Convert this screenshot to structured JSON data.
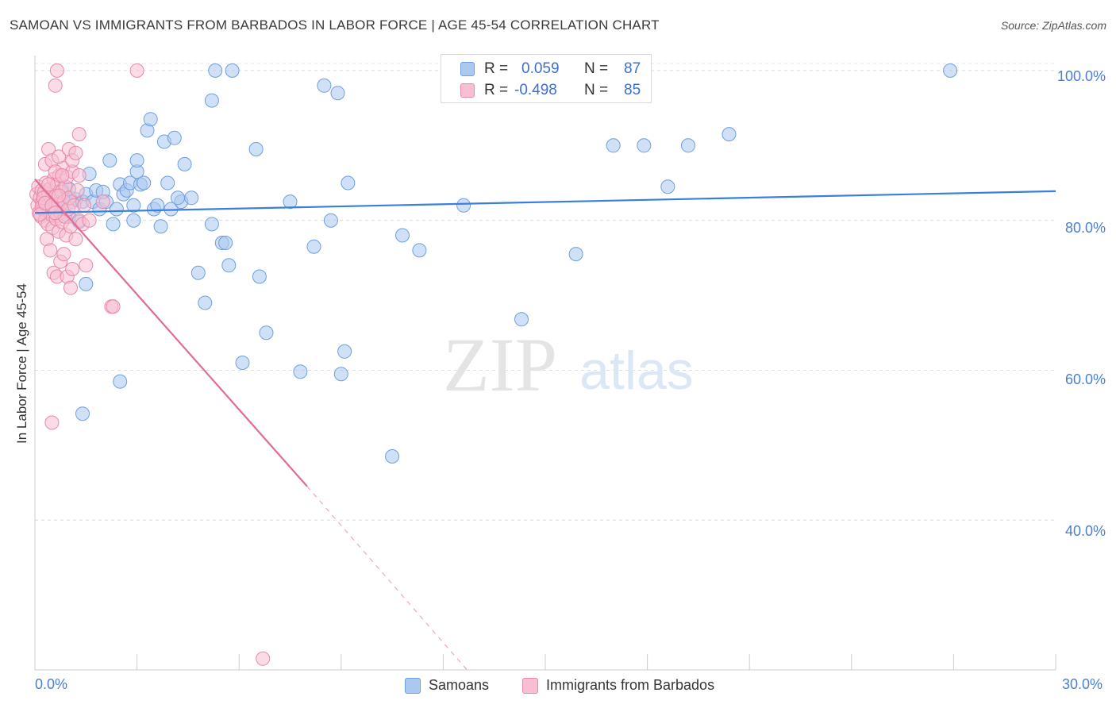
{
  "header": {
    "title": "SAMOAN VS IMMIGRANTS FROM BARBADOS IN LABOR FORCE | AGE 45-54 CORRELATION CHART",
    "source": "Source: ZipAtlas.com"
  },
  "watermark": {
    "zip": "ZIP",
    "atlas": "atlas"
  },
  "legend": {
    "rows": [
      {
        "r_label": "R =",
        "r_value": "0.059",
        "n_label": "N =",
        "n_value": "87",
        "color": "#aac8f0",
        "border": "#6f9fde"
      },
      {
        "r_label": "R =",
        "r_value": "-0.498",
        "n_label": "N =",
        "n_value": "85",
        "color": "#f8bfd2",
        "border": "#e889a8"
      }
    ]
  },
  "chart_data": {
    "type": "scatter",
    "title": "SAMOAN VS IMMIGRANTS FROM BARBADOS IN LABOR FORCE | AGE 45-54 CORRELATION CHART",
    "xlabel": "",
    "ylabel": "In Labor Force | Age 45-54",
    "xlim": [
      0,
      30
    ],
    "ylim": [
      20,
      102
    ],
    "x_tick_labels": [
      "0.0%",
      "30.0%"
    ],
    "y_ticks": [
      40,
      60,
      80,
      100
    ],
    "y_tick_labels": [
      "40.0%",
      "60.0%",
      "80.0%",
      "100.0%"
    ],
    "grid": true,
    "legend_position": "top-center",
    "series": [
      {
        "name": "Samoans",
        "color": "#aac8f0",
        "stroke": "#6f9fde",
        "trend": {
          "x": [
            0,
            30
          ],
          "y": [
            81.0,
            83.9
          ],
          "color": "#3a7fd8"
        },
        "points": [
          [
            0.2,
            81.5
          ],
          [
            0.3,
            80.8
          ],
          [
            0.4,
            82.0
          ],
          [
            0.5,
            81.0
          ],
          [
            0.6,
            80.5
          ],
          [
            0.7,
            83.0
          ],
          [
            0.8,
            84.0
          ],
          [
            0.9,
            82.8
          ],
          [
            1.0,
            80.5
          ],
          [
            1.1,
            82.5
          ],
          [
            1.2,
            82.8
          ],
          [
            1.3,
            79.8
          ],
          [
            1.4,
            82.5
          ],
          [
            1.5,
            83.5
          ],
          [
            1.7,
            82.5
          ],
          [
            1.8,
            84.0
          ],
          [
            1.9,
            81.5
          ],
          [
            2.1,
            82.5
          ],
          [
            2.3,
            79.5
          ],
          [
            2.2,
            88.0
          ],
          [
            2.4,
            81.5
          ],
          [
            2.5,
            84.8
          ],
          [
            2.6,
            83.5
          ],
          [
            2.7,
            84.0
          ],
          [
            2.8,
            85.0
          ],
          [
            2.9,
            80.0
          ],
          [
            3.0,
            86.5
          ],
          [
            3.1,
            84.8
          ],
          [
            3.2,
            85.0
          ],
          [
            3.0,
            88.0
          ],
          [
            3.3,
            92.0
          ],
          [
            3.4,
            93.5
          ],
          [
            3.5,
            81.5
          ],
          [
            3.6,
            82.0
          ],
          [
            3.7,
            79.2
          ],
          [
            3.8,
            90.5
          ],
          [
            3.9,
            85.0
          ],
          [
            4.0,
            81.5
          ],
          [
            4.1,
            91.0
          ],
          [
            4.3,
            82.5
          ],
          [
            4.4,
            87.5
          ],
          [
            4.6,
            83.0
          ],
          [
            4.8,
            73.0
          ],
          [
            5.0,
            69.0
          ],
          [
            5.2,
            79.5
          ],
          [
            5.5,
            77.0
          ],
          [
            5.6,
            77.0
          ],
          [
            5.7,
            74.0
          ],
          [
            5.2,
            96.0
          ],
          [
            5.3,
            100.0
          ],
          [
            5.8,
            100.0
          ],
          [
            6.5,
            89.5
          ],
          [
            6.6,
            72.5
          ],
          [
            6.8,
            65.0
          ],
          [
            7.5,
            82.5
          ],
          [
            7.8,
            59.8
          ],
          [
            8.2,
            76.5
          ],
          [
            8.5,
            98.0
          ],
          [
            8.7,
            80.0
          ],
          [
            8.9,
            97.0
          ],
          [
            9.0,
            59.5
          ],
          [
            9.1,
            62.5
          ],
          [
            9.2,
            85.0
          ],
          [
            10.5,
            48.5
          ],
          [
            10.8,
            78.0
          ],
          [
            11.3,
            76.0
          ],
          [
            12.6,
            82.0
          ],
          [
            14.3,
            66.8
          ],
          [
            15.9,
            75.5
          ],
          [
            17.0,
            90.0
          ],
          [
            17.9,
            90.0
          ],
          [
            18.6,
            84.5
          ],
          [
            19.2,
            90.0
          ],
          [
            20.4,
            91.5
          ],
          [
            26.9,
            100.0
          ],
          [
            1.5,
            71.5
          ],
          [
            2.5,
            58.5
          ],
          [
            0.4,
            82.0
          ],
          [
            0.5,
            82.0
          ],
          [
            0.6,
            81.5
          ],
          [
            1.0,
            84.2
          ],
          [
            1.6,
            86.2
          ],
          [
            2.0,
            83.8
          ],
          [
            2.9,
            82.0
          ],
          [
            4.2,
            83.0
          ],
          [
            6.1,
            61.0
          ],
          [
            1.4,
            54.2
          ]
        ]
      },
      {
        "name": "Immigrants from Barbados",
        "color": "#f8bfd2",
        "stroke": "#e889a8",
        "trend": {
          "x": [
            0,
            8.0
          ],
          "y": [
            85.5,
            44.5
          ],
          "dash_to": [
            12.7,
            20.0
          ],
          "color": "#e06b96"
        },
        "points": [
          [
            0.05,
            83.5
          ],
          [
            0.08,
            82.0
          ],
          [
            0.1,
            84.5
          ],
          [
            0.12,
            81.0
          ],
          [
            0.15,
            83.0
          ],
          [
            0.18,
            80.5
          ],
          [
            0.2,
            84.0
          ],
          [
            0.22,
            82.5
          ],
          [
            0.25,
            81.5
          ],
          [
            0.28,
            83.8
          ],
          [
            0.3,
            80.0
          ],
          [
            0.32,
            85.0
          ],
          [
            0.35,
            82.0
          ],
          [
            0.38,
            79.5
          ],
          [
            0.4,
            83.5
          ],
          [
            0.42,
            81.2
          ],
          [
            0.45,
            84.2
          ],
          [
            0.48,
            80.8
          ],
          [
            0.5,
            82.8
          ],
          [
            0.52,
            79.0
          ],
          [
            0.55,
            85.5
          ],
          [
            0.58,
            81.8
          ],
          [
            0.6,
            83.2
          ],
          [
            0.62,
            80.2
          ],
          [
            0.65,
            84.8
          ],
          [
            0.68,
            82.2
          ],
          [
            0.7,
            78.5
          ],
          [
            0.72,
            86.0
          ],
          [
            0.75,
            81.0
          ],
          [
            0.78,
            83.8
          ],
          [
            0.8,
            79.8
          ],
          [
            0.82,
            87.0
          ],
          [
            0.85,
            82.5
          ],
          [
            0.88,
            80.5
          ],
          [
            0.9,
            84.5
          ],
          [
            0.92,
            78.0
          ],
          [
            0.95,
            85.8
          ],
          [
            0.98,
            81.5
          ],
          [
            1.0,
            83.0
          ],
          [
            1.05,
            79.2
          ],
          [
            1.1,
            86.5
          ],
          [
            1.15,
            82.0
          ],
          [
            1.2,
            77.5
          ],
          [
            1.25,
            84.0
          ],
          [
            1.3,
            80.0
          ],
          [
            0.3,
            87.5
          ],
          [
            0.4,
            89.5
          ],
          [
            0.5,
            88.0
          ],
          [
            0.6,
            86.5
          ],
          [
            0.7,
            88.5
          ],
          [
            0.8,
            86.0
          ],
          [
            1.0,
            89.5
          ],
          [
            1.1,
            88.0
          ],
          [
            1.2,
            89.0
          ],
          [
            1.3,
            86.0
          ],
          [
            0.35,
            77.5
          ],
          [
            0.45,
            76.0
          ],
          [
            0.55,
            73.0
          ],
          [
            0.65,
            72.5
          ],
          [
            0.75,
            74.5
          ],
          [
            0.85,
            75.5
          ],
          [
            0.95,
            72.5
          ],
          [
            1.05,
            71.0
          ],
          [
            1.1,
            73.5
          ],
          [
            1.4,
            79.5
          ],
          [
            1.5,
            74.0
          ],
          [
            2.25,
            68.5
          ],
          [
            2.3,
            68.5
          ],
          [
            0.5,
            53.0
          ],
          [
            0.6,
            98.0
          ],
          [
            0.65,
            100.0
          ],
          [
            3.0,
            100.0
          ],
          [
            1.3,
            91.5
          ],
          [
            0.2,
            81.8
          ],
          [
            0.25,
            83.0
          ],
          [
            0.15,
            80.8
          ],
          [
            0.3,
            82.3
          ],
          [
            0.4,
            84.8
          ],
          [
            0.5,
            82.0
          ],
          [
            0.6,
            81.0
          ],
          [
            0.7,
            83.3
          ],
          [
            1.45,
            82.0
          ],
          [
            1.6,
            80.0
          ],
          [
            2.0,
            82.5
          ],
          [
            6.7,
            21.5
          ]
        ]
      }
    ]
  }
}
